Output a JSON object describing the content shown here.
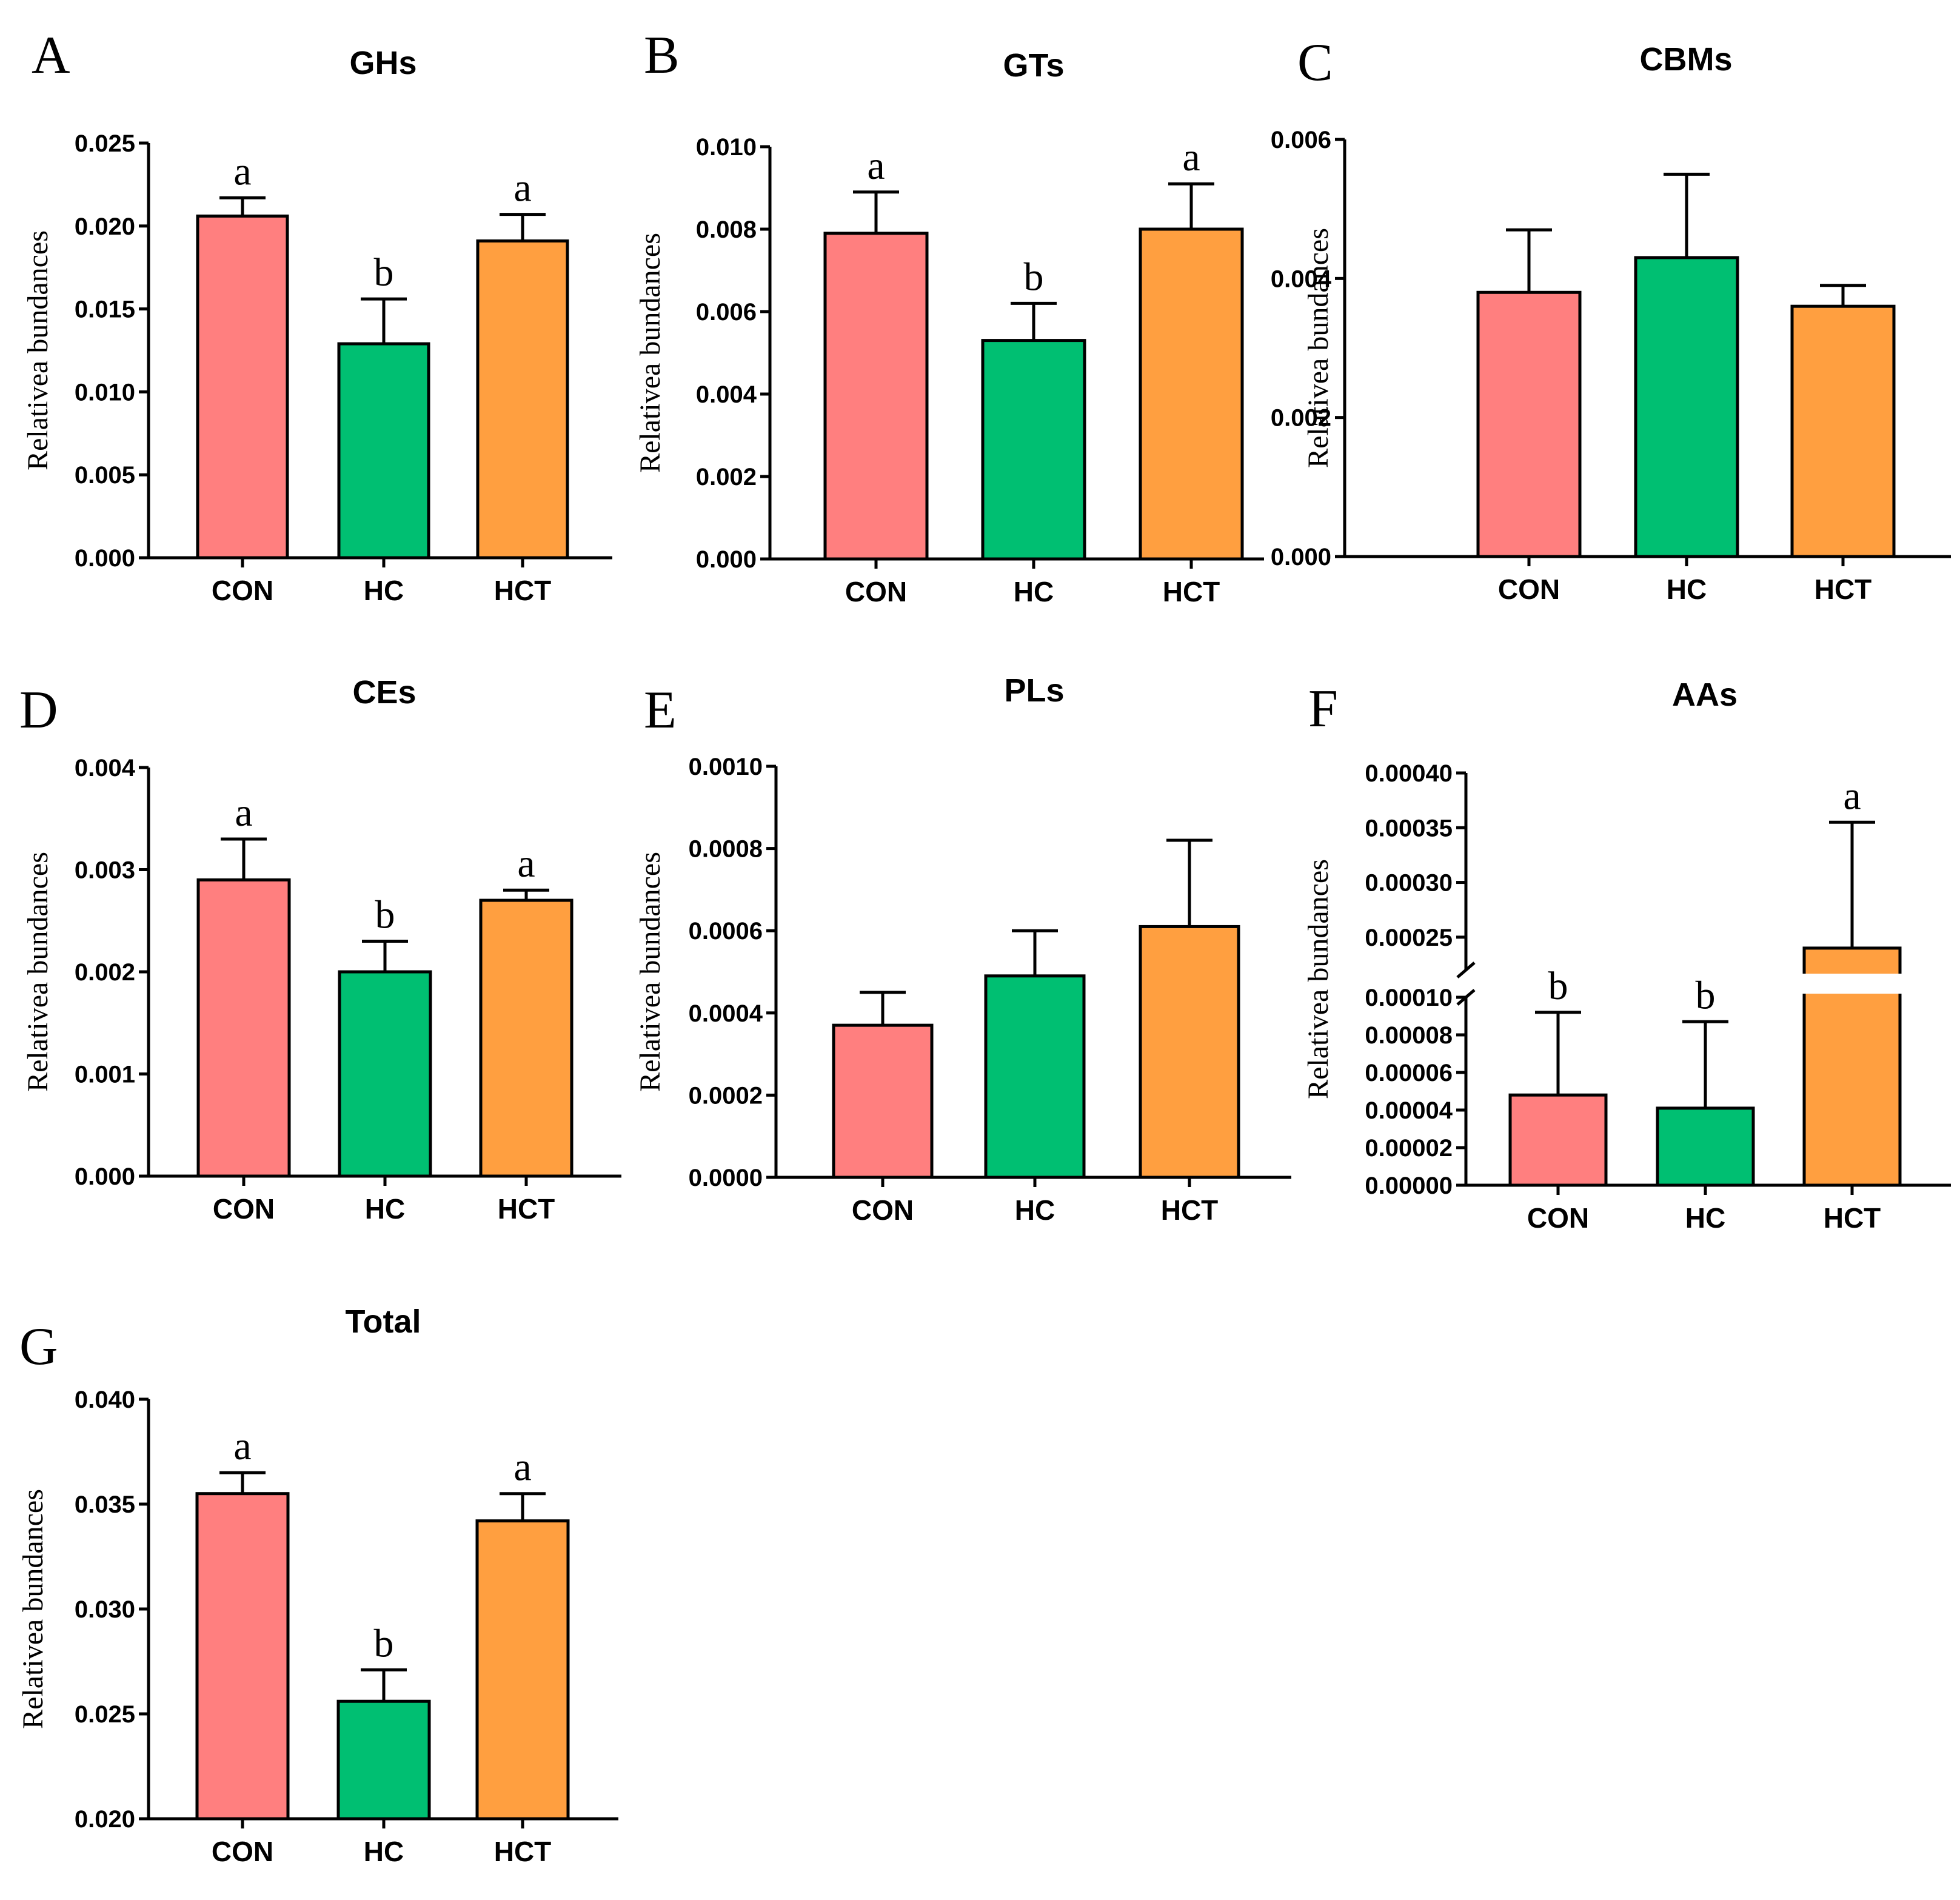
{
  "chart_data": [
    {
      "panel": "A",
      "type": "bar",
      "title": "GHs",
      "ylabel": "Relativea bundances",
      "categories": [
        "CON",
        "HC",
        "HCT"
      ],
      "values": [
        0.0206,
        0.0129,
        0.0191
      ],
      "errors": [
        0.0011,
        0.0027,
        0.0016
      ],
      "letters": [
        "a",
        "b",
        "a"
      ],
      "ylim": [
        0,
        0.025
      ],
      "yticks": [
        0,
        0.005,
        0.01,
        0.015,
        0.02,
        0.025
      ],
      "ytick_labels": [
        "0.000",
        "0.005",
        "0.010",
        "0.015",
        "0.020",
        "0.025"
      ],
      "colors": [
        "#FF7F7F",
        "#00BF72",
        "#FF9F40"
      ]
    },
    {
      "panel": "B",
      "type": "bar",
      "title": "GTs",
      "ylabel": "Relativea bundances",
      "categories": [
        "CON",
        "HC",
        "HCT"
      ],
      "values": [
        0.0079,
        0.0053,
        0.008
      ],
      "errors": [
        0.001,
        0.0009,
        0.0011
      ],
      "letters": [
        "a",
        "b",
        "a"
      ],
      "ylim": [
        0,
        0.01
      ],
      "yticks": [
        0,
        0.002,
        0.004,
        0.006,
        0.008,
        0.01
      ],
      "ytick_labels": [
        "0.000",
        "0.002",
        "0.004",
        "0.006",
        "0.008",
        "0.010"
      ],
      "colors": [
        "#FF7F7F",
        "#00BF72",
        "#FF9F40"
      ]
    },
    {
      "panel": "C",
      "type": "bar",
      "title": "CBMs",
      "ylabel": "Relativea bundances",
      "categories": [
        "CON",
        "HC",
        "HCT"
      ],
      "values": [
        0.0038,
        0.0043,
        0.0036
      ],
      "errors": [
        0.0009,
        0.0012,
        0.0003
      ],
      "letters": [
        "",
        "",
        ""
      ],
      "ylim": [
        0,
        0.006
      ],
      "yticks": [
        0,
        0.002,
        0.004,
        0.006
      ],
      "ytick_labels": [
        "0.000",
        "0.002",
        "0.004",
        "0.006"
      ],
      "colors": [
        "#FF7F7F",
        "#00BF72",
        "#FF9F40"
      ]
    },
    {
      "panel": "D",
      "type": "bar",
      "title": "CEs",
      "ylabel": "Relativea bundances",
      "categories": [
        "CON",
        "HC",
        "HCT"
      ],
      "values": [
        0.0029,
        0.002,
        0.0027
      ],
      "errors": [
        0.0004,
        0.0003,
        0.0001
      ],
      "letters": [
        "a",
        "b",
        "a"
      ],
      "ylim": [
        0,
        0.004
      ],
      "yticks": [
        0,
        0.001,
        0.002,
        0.003,
        0.004
      ],
      "ytick_labels": [
        "0.000",
        "0.001",
        "0.002",
        "0.003",
        "0.004"
      ],
      "colors": [
        "#FF7F7F",
        "#00BF72",
        "#FF9F40"
      ]
    },
    {
      "panel": "E",
      "type": "bar",
      "title": "PLs",
      "ylabel": "Relativea bundances",
      "categories": [
        "CON",
        "HC",
        "HCT"
      ],
      "values": [
        0.00037,
        0.00049,
        0.00061
      ],
      "errors": [
        8e-05,
        0.00011,
        0.00021
      ],
      "letters": [
        "",
        "",
        ""
      ],
      "ylim": [
        0,
        0.001
      ],
      "yticks": [
        0,
        0.0002,
        0.0004,
        0.0006,
        0.0008,
        0.001
      ],
      "ytick_labels": [
        "0.0000",
        "0.0002",
        "0.0004",
        "0.0006",
        "0.0008",
        "0.0010"
      ],
      "colors": [
        "#FF7F7F",
        "#00BF72",
        "#FF9F40"
      ]
    },
    {
      "panel": "F",
      "type": "bar",
      "title": "AAs",
      "ylabel": "Relativea bundances",
      "categories": [
        "CON",
        "HC",
        "HCT"
      ],
      "values": [
        4.8e-05,
        4.1e-05,
        0.00024
      ],
      "errors": [
        4.4e-05,
        4.6e-05,
        0.000115
      ],
      "letters": [
        "b",
        "b",
        "a"
      ],
      "axis_break": {
        "lower": [
          0,
          0.0001
        ],
        "upper": [
          0.00022,
          0.0004
        ]
      },
      "yticks": [
        0,
        2e-05,
        4e-05,
        6e-05,
        8e-05,
        0.0001,
        0.00025,
        0.0003,
        0.00035,
        0.0004
      ],
      "ytick_labels": [
        "0.00000",
        "0.00002",
        "0.00004",
        "0.00006",
        "0.00008",
        "0.00010",
        "0.00025",
        "0.00030",
        "0.00035",
        "0.00040"
      ],
      "colors": [
        "#FF7F7F",
        "#00BF72",
        "#FF9F40"
      ]
    },
    {
      "panel": "G",
      "type": "bar",
      "title": "Total",
      "ylabel": "Relativea bundances",
      "categories": [
        "CON",
        "HC",
        "HCT"
      ],
      "values": [
        0.0355,
        0.0256,
        0.0342
      ],
      "errors": [
        0.001,
        0.0015,
        0.0013
      ],
      "letters": [
        "a",
        "b",
        "a"
      ],
      "ylim": [
        0.02,
        0.04
      ],
      "yticks": [
        0.02,
        0.025,
        0.03,
        0.035,
        0.04
      ],
      "ytick_labels": [
        "0.020",
        "0.025",
        "0.030",
        "0.035",
        "0.040"
      ],
      "colors": [
        "#FF7F7F",
        "#00BF72",
        "#FF9F40"
      ]
    }
  ]
}
